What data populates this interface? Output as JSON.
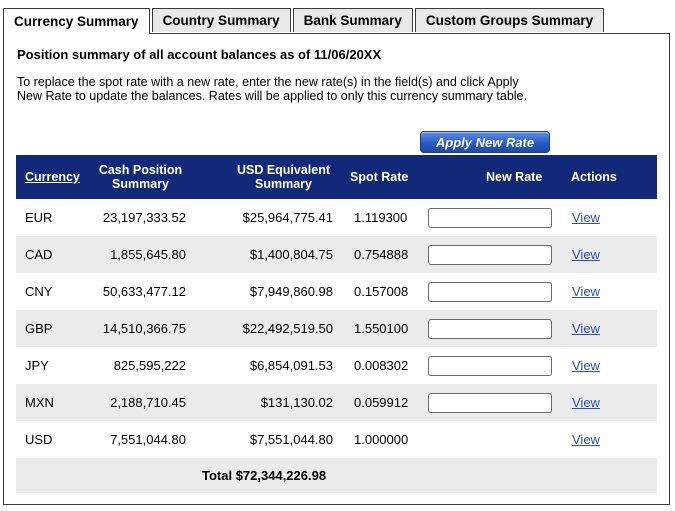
{
  "tabs": [
    {
      "label": "Currency Summary",
      "active": true
    },
    {
      "label": "Country Summary",
      "active": false
    },
    {
      "label": "Bank Summary",
      "active": false
    },
    {
      "label": "Custom Groups Summary",
      "active": false
    }
  ],
  "heading": "Position summary of all account balances as of 11/06/20XX",
  "instructions": "To replace the spot rate with a new rate, enter the new rate(s) in the field(s) and click Apply New Rate to update the balances. Rates will be applied to only this currency summary table.",
  "apply_button": "Apply New Rate",
  "table": {
    "headers": {
      "currency": "Currency",
      "cash_position": "Cash Position Summary",
      "usd_equivalent": "USD Equivalent Summary",
      "spot_rate": "Spot Rate",
      "new_rate": "New Rate",
      "actions": "Actions"
    },
    "rows": [
      {
        "currency": "EUR",
        "cash": "23,197,333.52",
        "usd": "$25,964,775.41",
        "spot": "1.119300",
        "has_input": true,
        "action": "View"
      },
      {
        "currency": "CAD",
        "cash": "1,855,645.80",
        "usd": "$1,400,804.75",
        "spot": "0.754888",
        "has_input": true,
        "action": "View"
      },
      {
        "currency": "CNY",
        "cash": "50,633,477.12",
        "usd": "$7,949,860.98",
        "spot": "0.157008",
        "has_input": true,
        "action": "View"
      },
      {
        "currency": "GBP",
        "cash": "14,510,366.75",
        "usd": "$22,492,519.50",
        "spot": "1.550100",
        "has_input": true,
        "action": "View"
      },
      {
        "currency": "JPY",
        "cash": "825,595,222",
        "usd": "$6,854,091.53",
        "spot": "0.008302",
        "has_input": true,
        "action": "View"
      },
      {
        "currency": "MXN",
        "cash": "2,188,710.45",
        "usd": "$131,130.02",
        "spot": "0.059912",
        "has_input": true,
        "action": "View"
      },
      {
        "currency": "USD",
        "cash": "7,551,044.80",
        "usd": "$7,551,044.80",
        "spot": "1.000000",
        "has_input": false,
        "action": "View"
      }
    ],
    "total_label": "Total $72,344,226.98"
  }
}
